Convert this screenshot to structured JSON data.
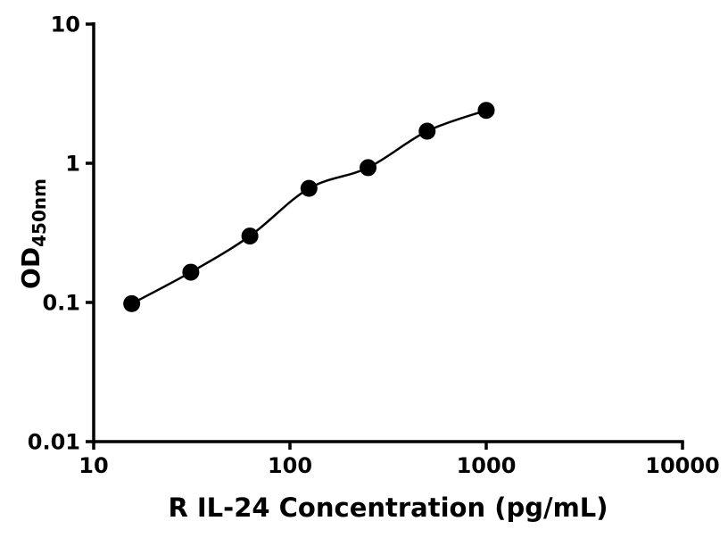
{
  "chart_data": {
    "type": "scatter",
    "title": "",
    "xlabel": "R IL-24 Concentration (pg/mL)",
    "ylabel_main": "OD",
    "ylabel_sub": "450nm",
    "x_scale": "log",
    "y_scale": "log",
    "xlim": [
      10,
      10000
    ],
    "ylim": [
      0.01,
      10
    ],
    "x_ticks": [
      10,
      100,
      1000,
      10000
    ],
    "x_tick_labels": [
      "10",
      "100",
      "1000",
      "10000"
    ],
    "y_ticks": [
      0.01,
      0.1,
      1,
      10
    ],
    "y_tick_labels": [
      "0.01",
      "0.1",
      "1",
      "10"
    ],
    "x": [
      15.625,
      31.25,
      62.5,
      125,
      250,
      500,
      1000
    ],
    "y": [
      0.098,
      0.165,
      0.3,
      0.66,
      0.93,
      1.7,
      2.4
    ],
    "grid": false,
    "legend": null,
    "marker": {
      "shape": "circle",
      "color": "#000000",
      "size": 9.5
    },
    "line": {
      "color": "#000000",
      "width": 2.5
    },
    "axis_color": "#000000",
    "background_color": "#ffffff"
  }
}
